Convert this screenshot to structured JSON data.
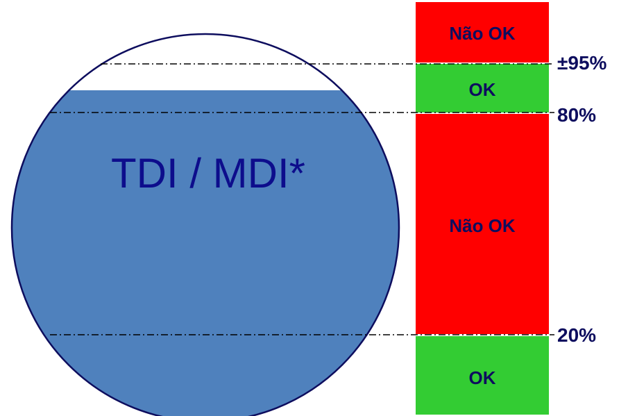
{
  "tank": {
    "label": "TDI / MDI*",
    "fill_color": "#4f81bd",
    "outline_color": "#0d0d5e",
    "label_color": "#0d0d8c"
  },
  "status_bar": {
    "bands": [
      {
        "label": "Não OK",
        "status": "not-ok",
        "color": "#ff0000"
      },
      {
        "label": "OK",
        "status": "ok",
        "color": "#33cc33"
      },
      {
        "label": "Não OK",
        "status": "not-ok",
        "color": "#ff0000"
      },
      {
        "label": "OK",
        "status": "ok",
        "color": "#33cc33"
      }
    ],
    "text_color": "#0d0d5e"
  },
  "thresholds": [
    {
      "label": "±95%",
      "value": 95
    },
    {
      "label": "80%",
      "value": 80
    },
    {
      "label": "20%",
      "value": 20
    }
  ],
  "line_color": "#000000"
}
